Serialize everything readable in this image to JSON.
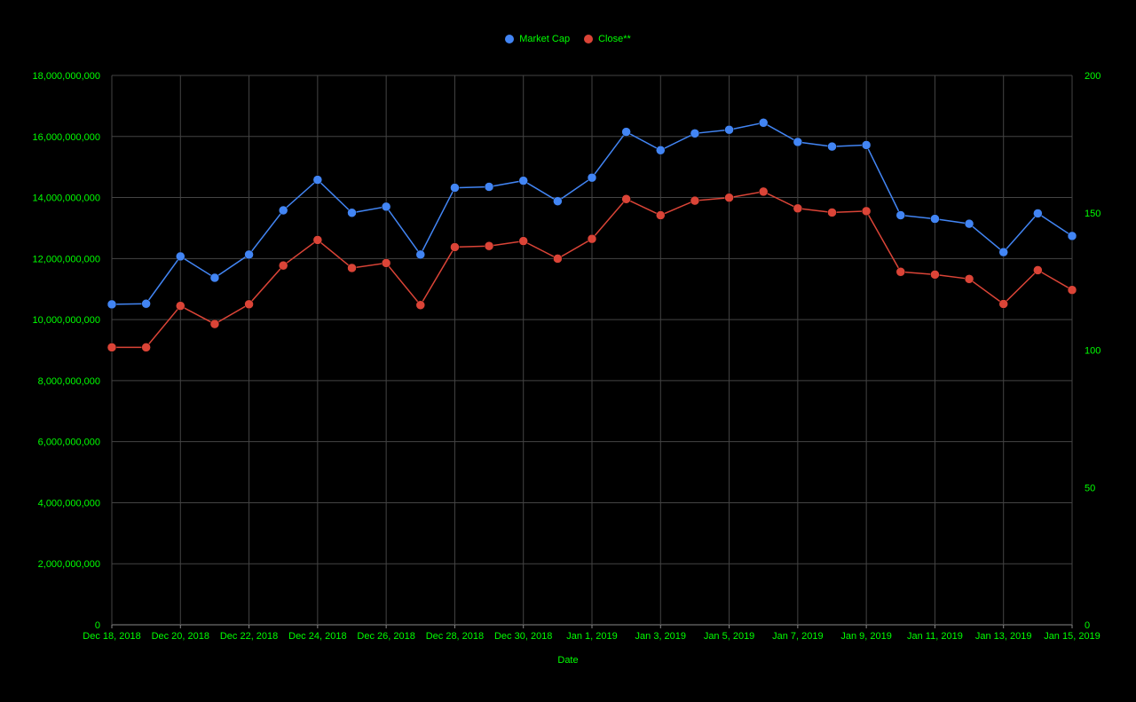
{
  "chart_data": {
    "type": "line",
    "xlabel": "Date",
    "ylabel_left": "",
    "ylabel_right": "",
    "x": [
      "2018-12-18",
      "2018-12-19",
      "2018-12-20",
      "2018-12-21",
      "2018-12-22",
      "2018-12-23",
      "2018-12-24",
      "2018-12-25",
      "2018-12-26",
      "2018-12-27",
      "2018-12-28",
      "2018-12-29",
      "2018-12-30",
      "2018-12-31",
      "2019-01-01",
      "2019-01-02",
      "2019-01-03",
      "2019-01-04",
      "2019-01-05",
      "2019-01-06",
      "2019-01-07",
      "2019-01-08",
      "2019-01-09",
      "2019-01-10",
      "2019-01-11",
      "2019-01-12",
      "2019-01-13",
      "2019-01-14",
      "2019-01-15"
    ],
    "x_ticks": [
      "Dec 18, 2018",
      "Dec 20, 2018",
      "Dec 22, 2018",
      "Dec 24, 2018",
      "Dec 26, 2018",
      "Dec 28, 2018",
      "Dec 30, 2018",
      "Jan 1, 2019",
      "Jan 3, 2019",
      "Jan 5, 2019",
      "Jan 7, 2019",
      "Jan 9, 2019",
      "Jan 11, 2019",
      "Jan 13, 2019",
      "Jan 15, 2019"
    ],
    "y_left_ticks": [
      "0",
      "2,000,000,000",
      "4,000,000,000",
      "6,000,000,000",
      "8,000,000,000",
      "10,000,000,000",
      "12,000,000,000",
      "14,000,000,000",
      "16,000,000,000",
      "18,000,000,000"
    ],
    "y_left_range": [
      0,
      18000000000
    ],
    "y_right_ticks": [
      "0",
      "50",
      "100",
      "150",
      "200"
    ],
    "y_right_range": [
      0,
      200
    ],
    "grid": true,
    "legend_position": "top-center",
    "series": [
      {
        "name": "Market Cap",
        "axis": "left",
        "color": "#4285f4",
        "values": [
          10500000000,
          10520000000,
          12070000000,
          11370000000,
          12130000000,
          13580000000,
          14580000000,
          13500000000,
          13700000000,
          12130000000,
          14320000000,
          14350000000,
          14550000000,
          13880000000,
          14650000000,
          16150000000,
          15550000000,
          16100000000,
          16220000000,
          16450000000,
          15820000000,
          15670000000,
          15720000000,
          13420000000,
          13300000000,
          13140000000,
          12210000000,
          13480000000,
          12740000000
        ]
      },
      {
        "name": "Close**",
        "axis": "right",
        "color": "#db4437",
        "values": [
          101.0,
          101.0,
          116.1,
          109.5,
          116.7,
          130.8,
          140.1,
          129.9,
          131.7,
          116.4,
          137.5,
          137.9,
          139.7,
          133.3,
          140.5,
          155.0,
          149.1,
          154.4,
          155.5,
          157.7,
          151.6,
          150.1,
          150.6,
          128.5,
          127.5,
          125.9,
          116.8,
          129.1,
          121.9
        ]
      }
    ]
  },
  "legend": {
    "market_cap": "Market Cap",
    "close": "Close**"
  },
  "colors": {
    "background": "#000000",
    "text": "#00ff00",
    "grid": "#444444",
    "market_cap": "#4285f4",
    "close": "#db4437"
  }
}
